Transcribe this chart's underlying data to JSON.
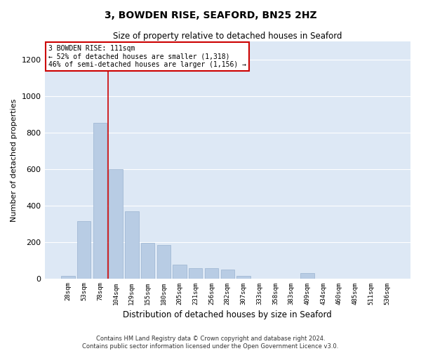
{
  "title1": "3, BOWDEN RISE, SEAFORD, BN25 2HZ",
  "title2": "Size of property relative to detached houses in Seaford",
  "xlabel": "Distribution of detached houses by size in Seaford",
  "ylabel": "Number of detached properties",
  "categories": [
    "28sqm",
    "53sqm",
    "78sqm",
    "104sqm",
    "129sqm",
    "155sqm",
    "180sqm",
    "205sqm",
    "231sqm",
    "256sqm",
    "282sqm",
    "307sqm",
    "333sqm",
    "358sqm",
    "383sqm",
    "409sqm",
    "434sqm",
    "460sqm",
    "485sqm",
    "511sqm",
    "536sqm"
  ],
  "values": [
    15,
    315,
    855,
    600,
    370,
    195,
    185,
    75,
    55,
    55,
    50,
    15,
    0,
    0,
    0,
    30,
    0,
    0,
    0,
    0,
    0
  ],
  "bar_color": "#b8cce4",
  "bar_edge_color": "#9ab3d0",
  "vline_color": "#cc0000",
  "vline_index": 2.5,
  "annotation_line1": "3 BOWDEN RISE: 111sqm",
  "annotation_line2": "← 52% of detached houses are smaller (1,318)",
  "annotation_line3": "46% of semi-detached houses are larger (1,156) →",
  "annotation_box_color": "#ffffff",
  "annotation_border_color": "#cc0000",
  "ylim": [
    0,
    1300
  ],
  "yticks": [
    0,
    200,
    400,
    600,
    800,
    1000,
    1200
  ],
  "background_color": "#dde8f5",
  "grid_color": "#ffffff",
  "footer1": "Contains HM Land Registry data © Crown copyright and database right 2024.",
  "footer2": "Contains public sector information licensed under the Open Government Licence v3.0."
}
